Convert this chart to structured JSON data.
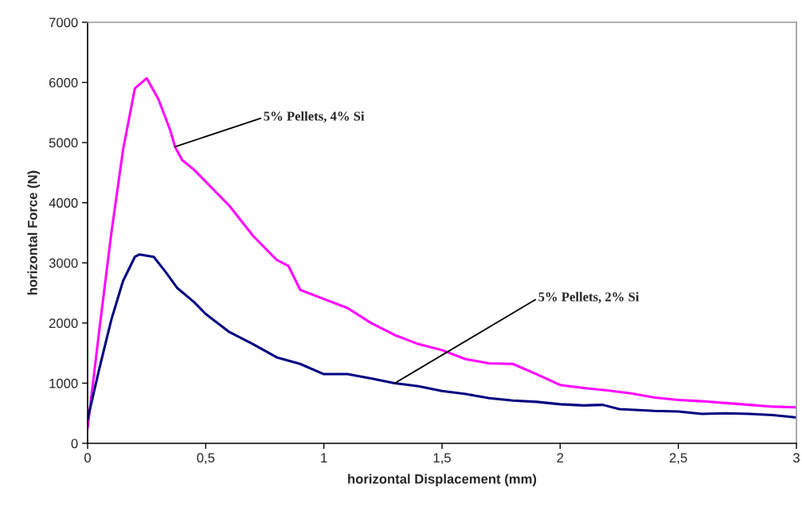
{
  "chart_data": {
    "type": "line",
    "xlabel": "horizontal Displacement (mm)",
    "ylabel": "horizontal Force (N)",
    "xlim": [
      0,
      3
    ],
    "ylim": [
      0,
      7000
    ],
    "xticks": [
      0,
      {
        "value": 0.5,
        "label": "0,5"
      },
      1,
      {
        "value": 1.5,
        "label": "1,5"
      },
      2,
      {
        "value": 2.5,
        "label": "2,5"
      },
      3
    ],
    "yticks": [
      0,
      1000,
      2000,
      3000,
      4000,
      5000,
      6000,
      7000
    ],
    "grid": false,
    "legend": false,
    "marker": "none",
    "line_style": "solid",
    "series": [
      {
        "color": "#ff00ff",
        "x": [
          0,
          0.05,
          0.1,
          0.15,
          0.2,
          0.25,
          0.3,
          0.35,
          0.37,
          0.4,
          0.45,
          0.5,
          0.6,
          0.7,
          0.8,
          0.85,
          0.9,
          1.0,
          1.1,
          1.2,
          1.3,
          1.4,
          1.5,
          1.6,
          1.7,
          1.8,
          1.9,
          2.0,
          2.1,
          2.2,
          2.3,
          2.4,
          2.5,
          2.6,
          2.7,
          2.8,
          2.9,
          3.0
        ],
        "values": [
          250,
          1900,
          3480,
          4880,
          5900,
          6070,
          5720,
          5200,
          4930,
          4710,
          4550,
          4350,
          3950,
          3450,
          3050,
          2950,
          2550,
          2400,
          2250,
          2000,
          1800,
          1650,
          1550,
          1400,
          1330,
          1320,
          1150,
          970,
          920,
          880,
          830,
          760,
          720,
          700,
          670,
          640,
          610,
          600
        ]
      },
      {
        "color": "#000080",
        "x": [
          0,
          0.05,
          0.1,
          0.15,
          0.2,
          0.22,
          0.28,
          0.33,
          0.38,
          0.45,
          0.5,
          0.6,
          0.7,
          0.8,
          0.9,
          1.0,
          1.1,
          1.2,
          1.3,
          1.4,
          1.5,
          1.6,
          1.7,
          1.8,
          1.9,
          2.0,
          2.1,
          2.18,
          2.25,
          2.4,
          2.5,
          2.6,
          2.7,
          2.8,
          2.9,
          3.0
        ],
        "values": [
          400,
          1250,
          2050,
          2700,
          3100,
          3140,
          3100,
          2850,
          2580,
          2350,
          2150,
          1850,
          1650,
          1430,
          1320,
          1150,
          1150,
          1080,
          1000,
          950,
          870,
          820,
          750,
          710,
          690,
          650,
          630,
          640,
          570,
          540,
          530,
          490,
          500,
          490,
          470,
          430
        ]
      }
    ],
    "annotations": [
      {
        "text": "5% Pellets, 4% Si",
        "x": 0.37,
        "y": 4930
      },
      {
        "text": "5% Pellets, 2% Si",
        "x": 1.3,
        "y": 1000
      }
    ]
  }
}
